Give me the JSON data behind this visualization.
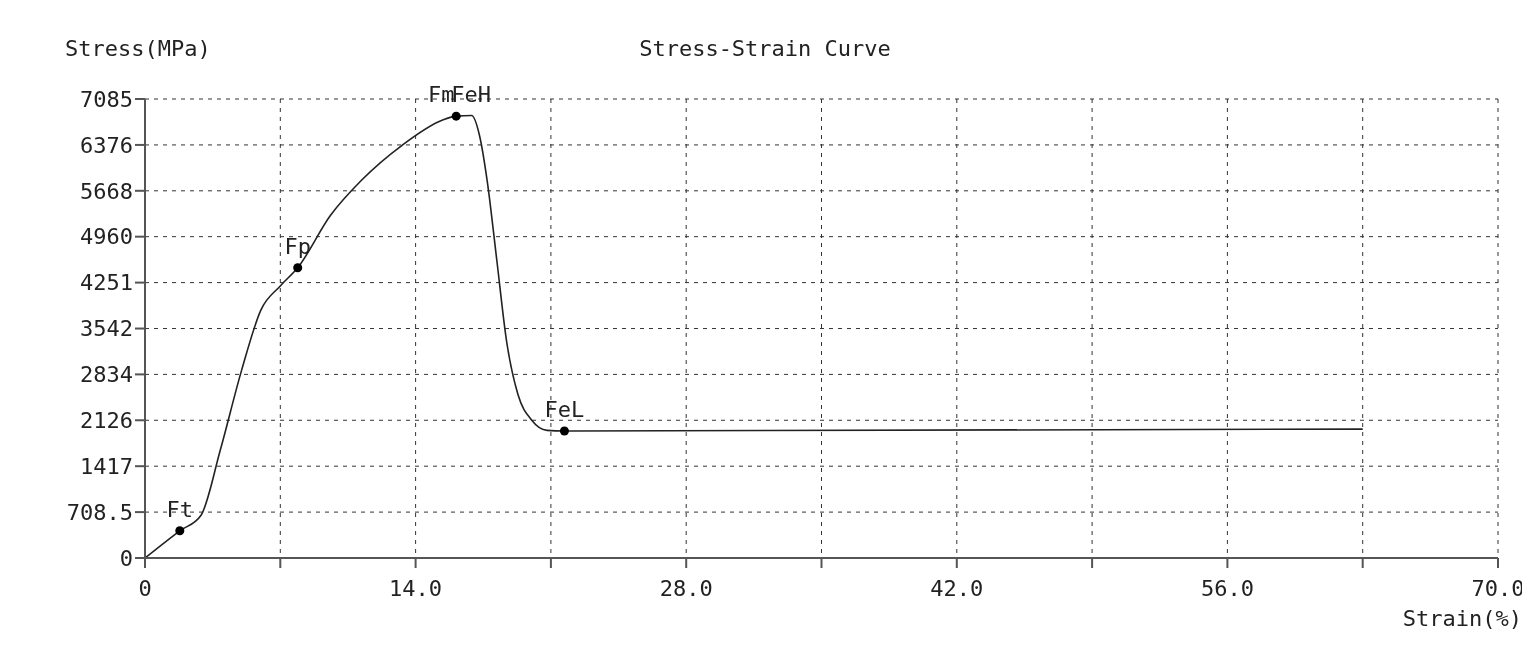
{
  "chart_data": {
    "type": "line",
    "title": "Stress-Strain Curve",
    "xlabel": "Strain(%)",
    "ylabel": "Stress(MPa)",
    "xlim": [
      0,
      70
    ],
    "xticks": [
      0,
      {
        "value": 7,
        "label": null
      },
      {
        "value": 14,
        "label": "14.0"
      },
      {
        "value": 21,
        "label": null
      },
      {
        "value": 28,
        "label": "28.0"
      },
      {
        "value": 35,
        "label": null
      },
      {
        "value": 42,
        "label": "42.0"
      },
      {
        "value": 49,
        "label": null
      },
      {
        "value": 56,
        "label": "56.0"
      },
      {
        "value": 63,
        "label": null
      },
      {
        "value": 70,
        "label": "70.0"
      }
    ],
    "ylim": [
      0,
      7085
    ],
    "yticks": [
      0,
      708.5,
      1417,
      2126,
      2834,
      3542,
      4251,
      4960,
      5668,
      6376,
      7085
    ],
    "grid": true,
    "series": [
      {
        "color": "#222222",
        "marker": "none",
        "line_style": "solid",
        "x": [
          0,
          1.8,
          2.9,
          3.9,
          5.0,
          6.0,
          7.0,
          7.9,
          9.6,
          11.2,
          13.3,
          15.4,
          16.1,
          16.9,
          17.3,
          17.7,
          18.2,
          18.7,
          19.3,
          20.0,
          20.8,
          21.7,
          63.0
        ],
        "values": [
          0,
          420,
          660,
          1670,
          2900,
          3830,
          4200,
          4480,
          5290,
          5830,
          6370,
          6760,
          6820,
          6830,
          6530,
          5830,
          4600,
          3360,
          2520,
          2130,
          1970,
          1960,
          1990
        ]
      },
      {
        "type": "scatter",
        "color": "#000000",
        "marker": "circle",
        "x": [
          1.8,
          7.9,
          16.1,
          21.7
        ],
        "values": [
          420,
          4480,
          6820,
          1960
        ]
      }
    ],
    "annotations": [
      {
        "text": "Ft",
        "x": 1.8,
        "y": 420
      },
      {
        "text": "Fp",
        "x": 7.9,
        "y": 4480
      },
      {
        "text": "Fm",
        "x": 16.1,
        "y": 6820
      },
      {
        "text": "FeH",
        "x": 16.1,
        "y": 6820
      },
      {
        "text": "FeL",
        "x": 21.7,
        "y": 1960
      }
    ]
  }
}
